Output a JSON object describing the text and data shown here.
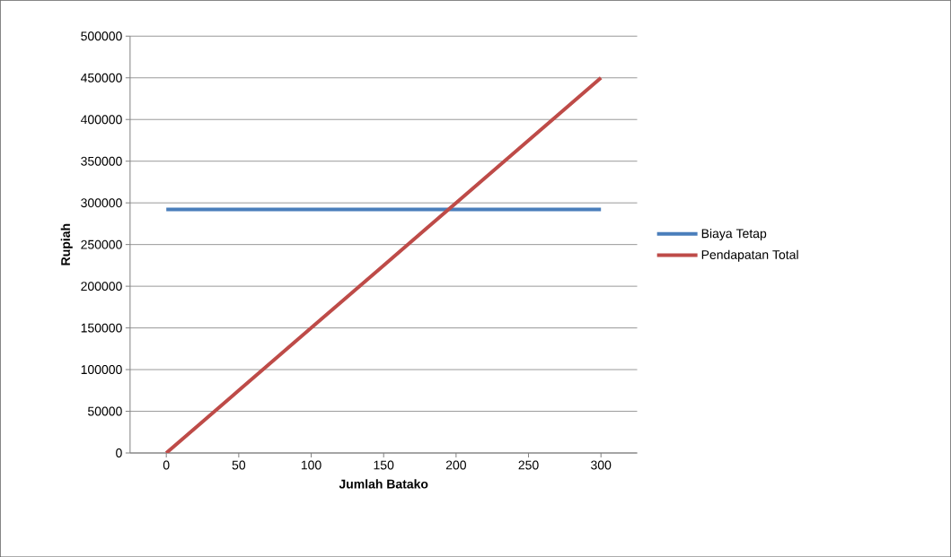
{
  "chart_data": {
    "type": "line",
    "xlabel": "Jumlah Batako",
    "ylabel": "Rupiah",
    "categories": [
      "0",
      "50",
      "100",
      "150",
      "200",
      "250",
      "300"
    ],
    "series": [
      {
        "name": "Biaya Tetap",
        "color": "#4a7ebb",
        "values": [
          292000,
          292000,
          292000,
          292000,
          292000,
          292000,
          292000
        ]
      },
      {
        "name": "Pendapatan Total",
        "color": "#be4b48",
        "values": [
          0,
          75000,
          150000,
          225000,
          300000,
          375000,
          450000
        ]
      }
    ],
    "ylim": [
      0,
      500000
    ],
    "yticks": [
      0,
      50000,
      100000,
      150000,
      200000,
      250000,
      300000,
      350000,
      400000,
      450000,
      500000
    ],
    "grid": "y",
    "legend": "right",
    "marker": "none",
    "line_style": "solid"
  }
}
